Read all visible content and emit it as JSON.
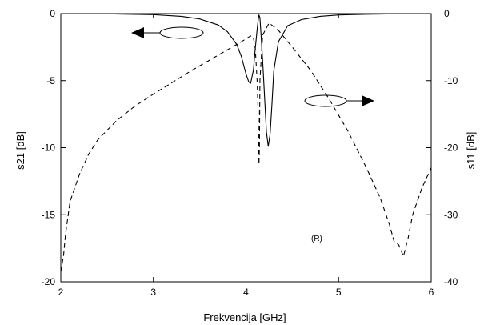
{
  "chart_data": {
    "type": "line",
    "xlabel": "Frekvencija [GHz]",
    "ylabel_left": "s21 [dB]",
    "ylabel_right": "s11 [dB]",
    "annotation": "(R)",
    "xlim": [
      2,
      6
    ],
    "ylim_left": [
      -20,
      0
    ],
    "ylim_right": [
      -40,
      0
    ],
    "x_ticks": [
      "2",
      "3",
      "4",
      "5",
      "6"
    ],
    "y_ticks_left": [
      "0",
      "-5",
      "-10",
      "-15",
      "-20"
    ],
    "y_ticks_right": [
      "0",
      "-10",
      "-20",
      "-30",
      "-40"
    ],
    "grid": false,
    "series": [
      {
        "axis": "left",
        "style": "solid",
        "x": [
          2.0,
          2.5,
          3.0,
          3.3,
          3.5,
          3.7,
          3.8,
          3.9,
          3.95,
          4.0,
          4.03,
          4.05,
          4.08,
          4.1,
          4.12,
          4.13,
          4.14,
          4.15,
          4.16,
          4.18,
          4.2,
          4.22,
          4.24,
          4.26,
          4.28,
          4.3,
          4.35,
          4.45,
          4.6,
          4.8,
          5.0,
          5.3,
          5.6,
          6.0
        ],
        "y": [
          0,
          -0.02,
          -0.08,
          -0.2,
          -0.4,
          -0.85,
          -1.35,
          -2.3,
          -3.2,
          -4.5,
          -5.1,
          -5.2,
          -4.2,
          -2.6,
          -1.2,
          -0.6,
          -0.1,
          -0.3,
          -1.3,
          -3.5,
          -6.2,
          -8.8,
          -9.9,
          -9.0,
          -6.8,
          -4.3,
          -2.1,
          -0.9,
          -0.45,
          -0.2,
          -0.1,
          -0.05,
          -0.02,
          0
        ]
      },
      {
        "axis": "right",
        "style": "dashed",
        "x": [
          2.0,
          2.03,
          2.05,
          2.1,
          2.2,
          2.3,
          2.4,
          2.6,
          2.8,
          3.0,
          3.2,
          3.4,
          3.6,
          3.8,
          3.95,
          4.03,
          4.06,
          4.08,
          4.1,
          4.12,
          4.13,
          4.135,
          4.14,
          4.145,
          4.15,
          4.18,
          4.25,
          4.35,
          4.5,
          4.7,
          4.9,
          5.1,
          5.3,
          5.45,
          5.55,
          5.6,
          5.65,
          5.7,
          5.75,
          5.8,
          5.9,
          6.0
        ],
        "y": [
          -38.5,
          -36,
          -33,
          -28,
          -24,
          -21,
          -18.8,
          -16,
          -13.8,
          -12,
          -10.3,
          -8.6,
          -7,
          -5.4,
          -4.2,
          -3.5,
          -3.3,
          -3.6,
          -5.2,
          -10,
          -14,
          -17,
          -22.5,
          -20,
          -10,
          -3.2,
          -1.4,
          -2.5,
          -5,
          -8.5,
          -12.8,
          -17.5,
          -23,
          -27.5,
          -31.5,
          -34,
          -34.5,
          -36.2,
          -33.5,
          -30,
          -26,
          -23
        ]
      }
    ],
    "arrows": [
      {
        "direction": "left",
        "axis": "left",
        "label": "s21"
      },
      {
        "direction": "right",
        "axis": "right",
        "label": "s11"
      }
    ]
  }
}
